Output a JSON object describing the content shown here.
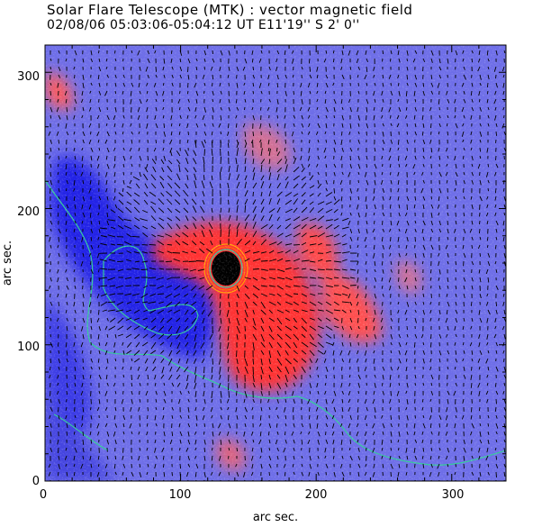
{
  "header": {
    "title": "Solar Flare Telescope (MTK) : vector magnetic field",
    "subtitle": "02/08/06  05:03:06-05:04:12 UT     E11'19''   S 2' 0''"
  },
  "axes": {
    "xlabel": "arc sec.",
    "ylabel": "arc sec.",
    "xlim": [
      0,
      340
    ],
    "ylim": [
      0,
      320
    ],
    "xticks": [
      "0",
      "100",
      "200",
      "300"
    ],
    "yticks": [
      "0",
      "100",
      "200",
      "300"
    ]
  },
  "colors": {
    "background_field": "#6b6bea",
    "positive_polarity": "#ff3b30",
    "negative_polarity": "#2222e8",
    "sunspot_umbra": "#000000",
    "contour": "#33cc99",
    "vectors": "#000000"
  }
}
